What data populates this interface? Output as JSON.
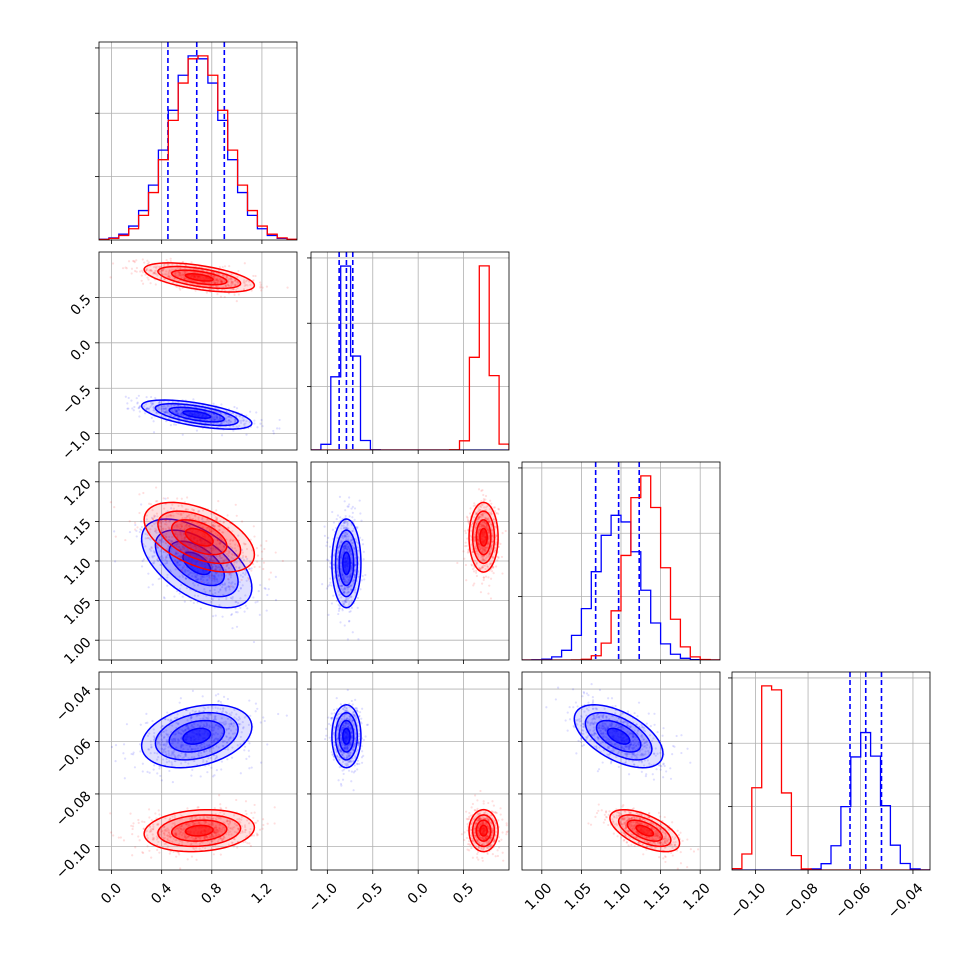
{
  "colors": {
    "series_a": "#0000ff",
    "series_b": "#ff0000",
    "grid": "#b0b0b0",
    "axes": "#000000"
  },
  "chart_data": {
    "type": "corner",
    "grid": true,
    "parameters": [
      {
        "range": [
          -0.1,
          1.48
        ],
        "ticks": [
          0.0,
          0.4,
          0.8,
          1.2
        ],
        "tick_labels": [
          "0.0",
          "0.4",
          "0.8",
          "1.2"
        ]
      },
      {
        "range": [
          -1.18,
          1.0
        ],
        "ticks": [
          -1.0,
          -0.5,
          0.0,
          0.5
        ],
        "tick_labels": [
          "−1.0",
          "−0.5",
          "0.0",
          "0.5"
        ]
      },
      {
        "range": [
          0.975,
          1.225
        ],
        "ticks": [
          1.0,
          1.05,
          1.1,
          1.15,
          1.2
        ],
        "tick_labels": [
          "1.00",
          "1.05",
          "1.10",
          "1.15",
          "1.20"
        ]
      },
      {
        "range": [
          -0.109,
          -0.0335
        ],
        "ticks": [
          -0.1,
          -0.08,
          -0.06,
          -0.04
        ],
        "tick_labels": [
          "−0.10",
          "−0.08",
          "−0.06",
          "−0.04"
        ]
      }
    ],
    "series": [
      {
        "color": "#0000ff",
        "mean": [
          0.68,
          -0.79,
          1.097,
          -0.058
        ],
        "sd": [
          0.22,
          0.08,
          0.028,
          0.006
        ],
        "corr": [
          [
            0.0,
            -0.6,
            -0.55,
            0.3
          ],
          [
            -0.6,
            0.0,
            0.0,
            0.0
          ],
          [
            -0.55,
            0.0,
            0.0,
            -0.55
          ],
          [
            0.3,
            0.0,
            -0.55,
            0.0
          ]
        ],
        "quantiles": [
          [
            0.45,
            0.68,
            0.9
          ],
          [
            -0.87,
            -0.79,
            -0.72
          ],
          [
            1.068,
            1.097,
            1.123
          ],
          [
            -0.064,
            -0.058,
            -0.052
          ]
        ]
      },
      {
        "color": "#ff0000",
        "mean": [
          0.7,
          0.72,
          1.13,
          -0.094
        ],
        "sd": [
          0.22,
          0.08,
          0.022,
          0.004
        ],
        "corr": [
          [
            0.0,
            -0.55,
            -0.5,
            0.15
          ],
          [
            -0.55,
            0.0,
            0.0,
            0.0
          ],
          [
            -0.5,
            0.0,
            0.0,
            -0.6
          ],
          [
            0.15,
            0.0,
            -0.6,
            0.0
          ]
        ],
        "quantiles": []
      }
    ]
  }
}
